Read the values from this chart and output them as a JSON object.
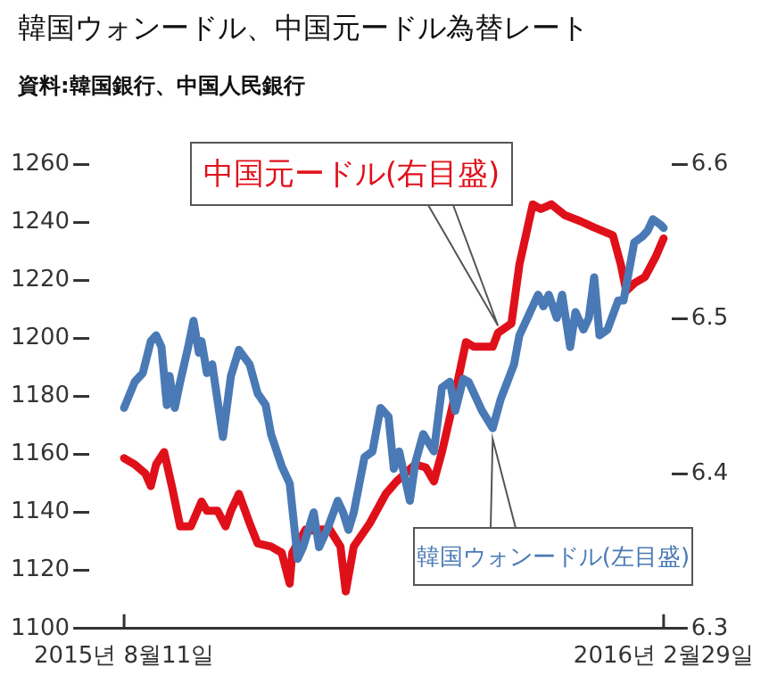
{
  "chart_data": {
    "type": "line",
    "title": "韓国ウォンードル、中国元ードル為替レート",
    "subtitle": "資料:韓国銀行、中国人民銀行",
    "xlim": [
      "2015-07-29",
      "2016-03-03"
    ],
    "xticks": [
      {
        "value": "2015-08-11",
        "label": "2015년 8월11일"
      },
      {
        "value": "2016-02-29",
        "label": "2016년 2월29일"
      }
    ],
    "ylim": [
      1100,
      1260
    ],
    "yticks": [
      1100,
      1120,
      1140,
      1160,
      1180,
      1200,
      1220,
      1240,
      1260
    ],
    "y2lim": [
      6.3,
      6.6
    ],
    "y2ticks": [
      6.3,
      6.4,
      6.5,
      6.6
    ],
    "grid": false,
    "legend": false,
    "marker": "none",
    "line_style": "solid",
    "series": [
      {
        "name": "韓国ウォンードル(左目盛)",
        "color": "#4a7ab5",
        "axis": "y",
        "x": [
          "2015-08-11",
          "2015-08-15",
          "2015-08-18",
          "2015-08-21",
          "2015-08-23",
          "2015-08-25",
          "2015-08-27",
          "2015-08-28",
          "2015-08-30",
          "2015-09-01",
          "2015-09-04",
          "2015-09-06",
          "2015-09-08",
          "2015-09-09",
          "2015-09-11",
          "2015-09-13",
          "2015-09-17",
          "2015-09-20",
          "2015-09-23",
          "2015-09-27",
          "2015-09-30",
          "2015-10-03",
          "2015-10-05",
          "2015-10-09",
          "2015-10-12",
          "2015-10-15",
          "2015-10-17",
          "2015-10-21",
          "2015-10-23",
          "2015-10-26",
          "2015-10-30",
          "2015-11-01",
          "2015-11-03",
          "2015-11-05",
          "2015-11-09",
          "2015-11-12",
          "2015-11-15",
          "2015-11-18",
          "2015-11-20",
          "2015-11-22",
          "2015-11-26",
          "2015-11-28",
          "2015-12-01",
          "2015-12-05",
          "2015-12-08",
          "2015-12-11",
          "2015-12-13",
          "2015-12-16",
          "2015-12-18",
          "2015-12-23",
          "2015-12-27",
          "2015-12-30",
          "2016-01-04",
          "2016-01-06",
          "2016-01-09",
          "2016-01-13",
          "2016-01-15",
          "2016-01-17",
          "2016-01-20",
          "2016-01-22",
          "2016-01-25",
          "2016-01-27",
          "2016-01-30",
          "2016-02-01",
          "2016-02-03",
          "2016-02-05",
          "2016-02-08",
          "2016-02-12",
          "2016-02-14",
          "2016-02-18",
          "2016-02-21",
          "2016-02-23",
          "2016-02-25",
          "2016-02-28",
          "2016-02-29"
        ],
        "values": [
          1176,
          1185,
          1188,
          1199,
          1201,
          1197,
          1177,
          1187,
          1176,
          1185,
          1197,
          1206,
          1195,
          1199,
          1188,
          1191,
          1166,
          1187,
          1196,
          1191,
          1181,
          1177,
          1167,
          1156,
          1150,
          1124,
          1128,
          1140,
          1128,
          1134,
          1144,
          1140,
          1134,
          1140,
          1159,
          1161,
          1176,
          1173,
          1155,
          1161,
          1144,
          1157,
          1167,
          1161,
          1183,
          1185,
          1175,
          1186,
          1185,
          1175,
          1169,
          1179,
          1191,
          1201,
          1207,
          1215,
          1211,
          1215,
          1207,
          1215,
          1197,
          1209,
          1203,
          1207,
          1221,
          1201,
          1203,
          1213,
          1213,
          1233,
          1235,
          1237,
          1241,
          1239,
          1238
        ]
      },
      {
        "name": "中国元ードル(右目盛)",
        "color": "#e0101a",
        "axis": "y2",
        "x": [
          "2015-08-11",
          "2015-08-15",
          "2015-08-19",
          "2015-08-21",
          "2015-08-23",
          "2015-08-26",
          "2015-08-29",
          "2015-09-01",
          "2015-09-05",
          "2015-09-09",
          "2015-09-11",
          "2015-09-15",
          "2015-09-18",
          "2015-09-20",
          "2015-09-23",
          "2015-09-27",
          "2015-09-30",
          "2015-10-05",
          "2015-10-09",
          "2015-10-12",
          "2015-10-13",
          "2015-10-18",
          "2015-10-22",
          "2015-10-24",
          "2015-10-27",
          "2015-10-31",
          "2015-11-02",
          "2015-11-05",
          "2015-11-11",
          "2015-11-17",
          "2015-11-21",
          "2015-11-28",
          "2015-12-02",
          "2015-12-05",
          "2015-12-08",
          "2015-12-12",
          "2015-12-17",
          "2015-12-20",
          "2015-12-27",
          "2015-12-29",
          "2016-01-03",
          "2016-01-06",
          "2016-01-11",
          "2016-01-14",
          "2016-01-18",
          "2016-01-23",
          "2016-01-29",
          "2016-02-03",
          "2016-02-10",
          "2016-02-13",
          "2016-02-15",
          "2016-02-18",
          "2016-02-22",
          "2016-02-26",
          "2016-02-29"
        ],
        "values": [
          6.41,
          6.406,
          6.4,
          6.392,
          6.406,
          6.414,
          6.391,
          6.366,
          6.366,
          6.382,
          6.376,
          6.376,
          6.366,
          6.376,
          6.387,
          6.368,
          6.355,
          6.353,
          6.349,
          6.329,
          6.349,
          6.364,
          6.363,
          6.364,
          6.364,
          6.353,
          6.324,
          6.353,
          6.368,
          6.387,
          6.395,
          6.406,
          6.404,
          6.395,
          6.414,
          6.444,
          6.485,
          6.482,
          6.482,
          6.491,
          6.497,
          6.535,
          6.574,
          6.571,
          6.574,
          6.567,
          6.563,
          6.559,
          6.554,
          6.535,
          6.518,
          6.523,
          6.527,
          6.54,
          6.552
        ]
      }
    ]
  }
}
